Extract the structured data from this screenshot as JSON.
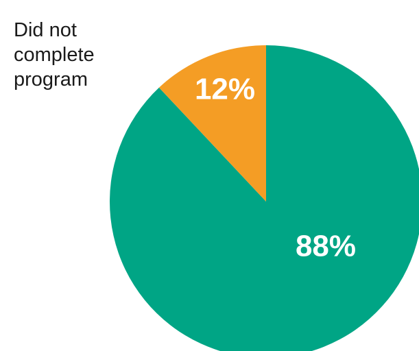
{
  "chart_data": {
    "type": "pie",
    "title": "",
    "callout_label": "Did not\ncomplete\nprogram",
    "slices": [
      {
        "value": 88,
        "label": "88%",
        "color": "#00A585"
      },
      {
        "value": 12,
        "label": "12%",
        "color": "#F49D25"
      }
    ],
    "legend": "none"
  }
}
